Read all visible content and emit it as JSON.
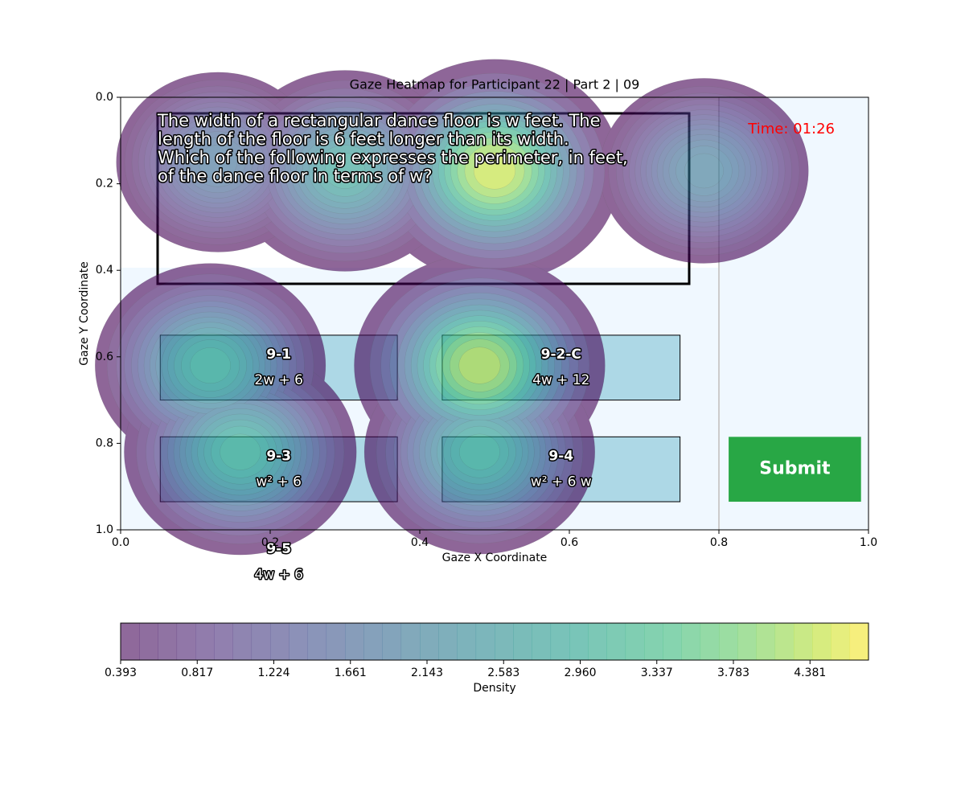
{
  "chart_data": {
    "type": "contour",
    "title": "Gaze Heatmap for Participant 22 | Part 2 | 09",
    "xlabel": "Gaze X Coordinate",
    "ylabel": "Gaze Y Coordinate",
    "xlim": [
      0,
      1
    ],
    "ylim": [
      0,
      1
    ],
    "y_inverted": true,
    "xticks": [
      {
        "value": 0,
        "label": "0.0"
      },
      {
        "value": 0.2,
        "label": "0.2"
      },
      {
        "value": 0.4,
        "label": "0.4"
      },
      {
        "value": 0.6,
        "label": "0.6"
      },
      {
        "value": 0.8,
        "label": "0.8"
      },
      {
        "value": 1,
        "label": "1.0"
      }
    ],
    "yticks": [
      {
        "value": 0,
        "label": "0.0"
      },
      {
        "value": 0.2,
        "label": "0.2"
      },
      {
        "value": 0.4,
        "label": "0.4"
      },
      {
        "value": 0.6,
        "label": "0.6"
      },
      {
        "value": 0.8,
        "label": "0.8"
      },
      {
        "value": 1,
        "label": "1.0"
      }
    ],
    "hotspots": {
      "x": [
        0.5,
        0.3,
        0.13,
        0.78,
        0.48,
        0.12,
        0.16,
        0.48
      ],
      "y": [
        0.17,
        0.17,
        0.15,
        0.17,
        0.62,
        0.62,
        0.82,
        0.82
      ],
      "values": [
        4.8,
        3.0,
        2.0,
        2.2,
        4.7,
        3.2,
        3.3,
        3.2
      ]
    },
    "colorbar": {
      "label": "Density",
      "lim": [
        0.393,
        4.95
      ],
      "ticks": [
        0.393,
        0.817,
        1.224,
        1.661,
        2.143,
        2.583,
        {
          "value": 2.96,
          "label": "2.960"
        },
        3.337,
        3.783,
        4.381
      ]
    }
  },
  "screen": {
    "question": [
      "The width of a rectangular dance floor is w feet. The",
      "length of the floor is 6 feet longer than its width.",
      "Which of the following expresses the perimeter, in feet,",
      "of the dance floor in terms of w?"
    ],
    "time": "Time: 01:26",
    "options": [
      {
        "id": "9-1",
        "text": "2w + 6"
      },
      {
        "id": "9-2-C",
        "text": "4w + 12"
      },
      {
        "id": "9-3",
        "text": "w² + 6"
      },
      {
        "id": "9-4",
        "text": "w² + 6 w"
      },
      {
        "id": "9-5",
        "text": "4w + 6"
      }
    ],
    "submit": "Submit"
  }
}
